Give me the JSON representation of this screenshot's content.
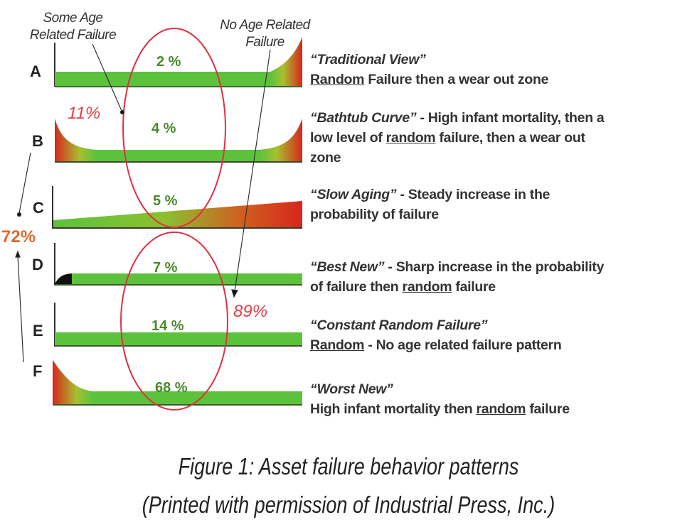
{
  "annotations": {
    "some_age": [
      "Some Age",
      "Related Failure"
    ],
    "no_age": [
      "No Age Related",
      "Failure"
    ]
  },
  "summary": {
    "age_related_pct": "11%",
    "no_age_related_pct": "89%",
    "b_to_f_pct": "72%"
  },
  "patterns": [
    {
      "letter": "A",
      "percent": "2 %",
      "desc": [
        [
          {
            "t": "“Traditional View”",
            "s": "i"
          }
        ],
        [
          {
            "t": "Random",
            "s": "u"
          },
          {
            "t": " Failure then a wear out zone",
            "s": "n"
          }
        ]
      ]
    },
    {
      "letter": "B",
      "percent": "4 %",
      "desc": [
        [
          {
            "t": "“Bathtub Curve”",
            "s": "i"
          },
          {
            "t": " - High infant mortality, then a",
            "s": "n"
          }
        ],
        [
          {
            "t": "low level of ",
            "s": "n"
          },
          {
            "t": "random",
            "s": "u"
          },
          {
            "t": " failure, then a wear out",
            "s": "n"
          }
        ],
        [
          {
            "t": "zone",
            "s": "n"
          }
        ]
      ]
    },
    {
      "letter": "C",
      "percent": "5 %",
      "desc": [
        [
          {
            "t": "“Slow Aging”",
            "s": "i"
          },
          {
            "t": " - Steady increase in the",
            "s": "n"
          }
        ],
        [
          {
            "t": "probability of failure",
            "s": "n"
          }
        ]
      ]
    },
    {
      "letter": "D",
      "percent": "7 %",
      "desc": [
        [
          {
            "t": "“Best New”",
            "s": "i"
          },
          {
            "t": " - Sharp increase in the probability",
            "s": "n"
          }
        ],
        [
          {
            "t": "of failure then ",
            "s": "n"
          },
          {
            "t": "random",
            "s": "u"
          },
          {
            "t": " failure",
            "s": "n"
          }
        ]
      ]
    },
    {
      "letter": "E",
      "percent": "14 %",
      "desc": [
        [
          {
            "t": "“Constant Random Failure”",
            "s": "i"
          }
        ],
        [
          {
            "t": "Random",
            "s": "u"
          },
          {
            "t": " - No age related failure pattern",
            "s": "n"
          }
        ]
      ]
    },
    {
      "letter": "F",
      "percent": "68 %",
      "desc": [
        [
          {
            "t": "“Worst New”",
            "s": "i"
          }
        ],
        [
          {
            "t": "High infant mortality then ",
            "s": "n"
          },
          {
            "t": "random",
            "s": "u"
          },
          {
            "t": " failure",
            "s": "n"
          }
        ]
      ]
    }
  ],
  "caption": {
    "line1": "Figure 1: Asset failure behavior patterns",
    "line2": "(Printed with permission of Industrial Press, Inc.)"
  },
  "colors": {
    "green": "#5cc23c",
    "red": "#d8261c",
    "ellipse": "#e03040",
    "orange": "#e06a2a"
  }
}
